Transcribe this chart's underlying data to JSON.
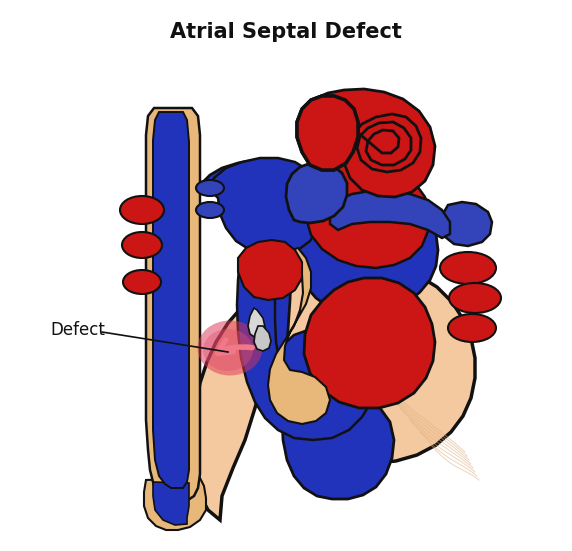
{
  "title": "Atrial Septal Defect",
  "title_fontsize": 15,
  "title_fontweight": "bold",
  "background_color": "#ffffff",
  "defect_label": "Defect",
  "colors": {
    "dark": "#111111",
    "red": "#cc1515",
    "blue": "#2233bb",
    "blue_dark": "#1a28a0",
    "blue_purple": "#3344bb",
    "skin": "#f5c9a0",
    "tan": "#e8b87a",
    "gold": "#d4a055",
    "pink_glow": "#e87090",
    "pink_arrow": "#e06878",
    "gray": "#c0c0c0",
    "red_dark": "#aa1010",
    "white": "#ffffff"
  }
}
